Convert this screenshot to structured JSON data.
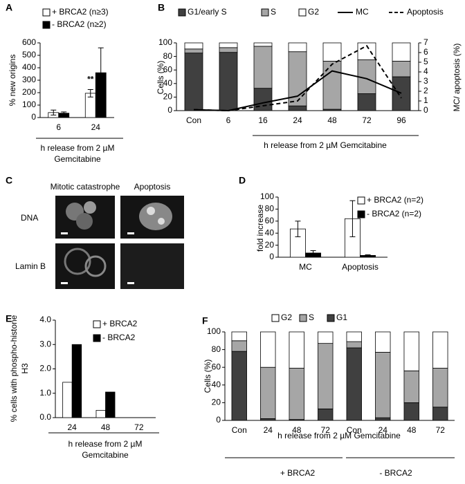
{
  "chart_data": [
    {
      "type": "bar",
      "panel": "A",
      "y_label": "% new origins",
      "x_label": "h release from 2 µM Gemcitabine",
      "categories": [
        "6",
        "24"
      ],
      "series": [
        {
          "name": "+ BRCA2 (n≥3)",
          "color": "#ffffff",
          "values": [
            40,
            195
          ],
          "errors": [
            20,
            30
          ]
        },
        {
          "name": "- BRCA2 (n≥2)",
          "color": "#000000",
          "values": [
            35,
            360
          ],
          "errors": [
            10,
            200
          ]
        }
      ],
      "annotations": [
        "**"
      ],
      "ylim": [
        0,
        600
      ],
      "yticks": [
        0,
        100,
        200,
        300,
        400,
        500,
        600
      ],
      "grid": false
    },
    {
      "type": "bar",
      "stacked": true,
      "panel": "B",
      "y_label": "Cells (%)",
      "y2_label": "MC/ apoptosis (%)",
      "x_label": "h release from 2 µM Gemcitabine",
      "categories": [
        "Con",
        "6",
        "16",
        "24",
        "48",
        "72",
        "96"
      ],
      "series": [
        {
          "name": "G1/early S",
          "color": "#404040",
          "values": [
            85,
            86,
            33,
            7,
            2,
            25,
            50
          ]
        },
        {
          "name": "S",
          "color": "#a6a6a6",
          "values": [
            6,
            7,
            62,
            80,
            71,
            50,
            23
          ]
        },
        {
          "name": "G2",
          "color": "#ffffff",
          "values": [
            9,
            7,
            5,
            13,
            27,
            25,
            27
          ]
        },
        {
          "name": "MC",
          "color": "#000000",
          "axis": "y2",
          "line_style": "solid",
          "values": [
            0.1,
            0,
            0.8,
            1.5,
            4.1,
            3.3,
            1.8
          ]
        },
        {
          "name": "Apoptosis",
          "color": "#000000",
          "axis": "y2",
          "line_style": "dashed",
          "values": [
            0.1,
            0,
            0.5,
            1.0,
            4.8,
            6.7,
            1.3
          ]
        }
      ],
      "ylim": [
        0,
        100
      ],
      "yticks": [
        0,
        20,
        40,
        60,
        80,
        100
      ],
      "y2lim": [
        0,
        7
      ],
      "y2ticks": [
        0,
        1,
        2,
        3,
        4,
        5,
        6,
        7
      ],
      "grid": false
    },
    {
      "type": "bar",
      "panel": "D",
      "y_label": "fold increase",
      "categories": [
        "MC",
        "Apoptosis"
      ],
      "series": [
        {
          "name": "+ BRCA2 (n=2)",
          "color": "#ffffff",
          "values": [
            47,
            64
          ],
          "errors": [
            13,
            30
          ]
        },
        {
          "name": "- BRCA2 (n=2)",
          "color": "#000000",
          "values": [
            7,
            3
          ],
          "errors": [
            4,
            1
          ]
        }
      ],
      "ylim": [
        0,
        100
      ],
      "yticks": [
        0,
        20,
        40,
        60,
        80,
        100
      ],
      "grid": false
    },
    {
      "type": "bar",
      "panel": "E",
      "y_label": "% cells with phospho-histone H3",
      "x_label": "h release from 2 µM Gemcitabine",
      "categories": [
        "24",
        "48",
        "72"
      ],
      "series": [
        {
          "name": "+ BRCA2",
          "color": "#ffffff",
          "values": [
            1.45,
            0.3,
            0
          ]
        },
        {
          "name": "- BRCA2",
          "color": "#000000",
          "values": [
            3.0,
            1.05,
            0
          ]
        }
      ],
      "ylim": [
        0,
        4
      ],
      "yticks": [
        {
          "value": 0,
          "label": "0.0"
        },
        {
          "value": 1,
          "label": "1.0"
        },
        {
          "value": 2,
          "label": "2.0"
        },
        {
          "value": 3,
          "label": "3.0"
        },
        {
          "value": 4,
          "label": "4.0"
        }
      ],
      "grid": false
    },
    {
      "type": "bar",
      "stacked": true,
      "panel": "F",
      "y_label": "Cells (%)",
      "x_label": "h release from 2 µM Gemcitabine",
      "categories": [
        "Con",
        "24",
        "48",
        "72",
        "Con",
        "24",
        "48",
        "72"
      ],
      "groups": [
        "+ BRCA2",
        "- BRCA2"
      ],
      "series": [
        {
          "name": "G1",
          "color": "#404040",
          "values": [
            78,
            2,
            1,
            13,
            82,
            3,
            20,
            15
          ]
        },
        {
          "name": "S",
          "color": "#a6a6a6",
          "values": [
            12,
            58,
            58,
            74,
            7,
            74,
            36,
            44
          ]
        },
        {
          "name": "G2",
          "color": "#ffffff",
          "values": [
            10,
            40,
            41,
            13,
            11,
            23,
            44,
            41
          ]
        }
      ],
      "ylim": [
        0,
        100
      ],
      "yticks": [
        0,
        20,
        40,
        60,
        80,
        100
      ],
      "grid": false
    }
  ],
  "image_panel": {
    "panel": "C",
    "columns": [
      "Mitotic catastrophe",
      "Apoptosis"
    ],
    "rows": [
      "DNA",
      "Lamin B"
    ]
  }
}
